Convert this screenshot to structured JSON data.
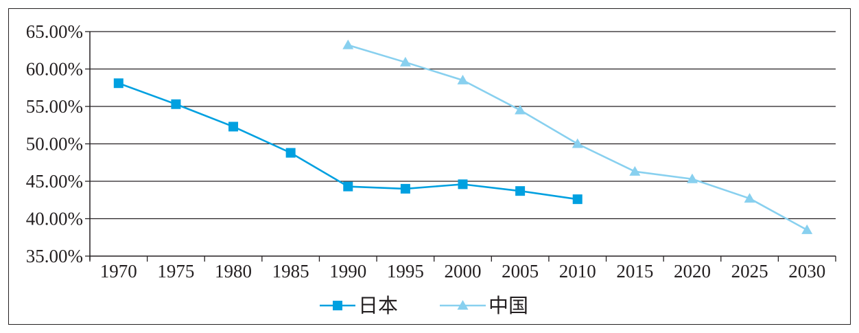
{
  "chart_data": {
    "type": "line",
    "categories": [
      "1970",
      "1975",
      "1980",
      "1985",
      "1990",
      "1995",
      "2000",
      "2005",
      "2010",
      "2015",
      "2020",
      "2025",
      "2030"
    ],
    "y_tick_labels": [
      "65.00%",
      "60.00%",
      "55.00%",
      "50.00%",
      "45.00%",
      "40.00%",
      "35.00%"
    ],
    "ylim": [
      35,
      65
    ],
    "y_ticks": [
      65,
      60,
      55,
      50,
      45,
      40,
      35
    ],
    "grid": true,
    "legend_position": "bottom",
    "series": [
      {
        "name": "日本",
        "color": "#00a0e0",
        "marker": "square",
        "values": [
          58.1,
          55.3,
          52.3,
          48.8,
          44.3,
          44.0,
          44.6,
          43.7,
          42.6,
          null,
          null,
          null,
          null
        ]
      },
      {
        "name": "中国",
        "color": "#88d0ef",
        "marker": "triangle",
        "values": [
          null,
          null,
          null,
          null,
          63.2,
          60.9,
          58.5,
          54.5,
          50.0,
          46.3,
          45.3,
          42.7,
          38.5
        ]
      }
    ]
  }
}
